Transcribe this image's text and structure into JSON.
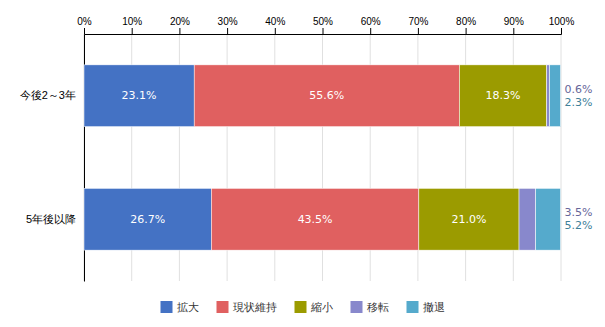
{
  "chart_data": {
    "type": "bar",
    "orientation": "horizontal",
    "stacked": true,
    "data_labels": true,
    "categories": [
      "今後2～3年",
      "5年後以降"
    ],
    "series": [
      {
        "name": "拡大",
        "color": "#4472C4",
        "values": [
          23.1,
          26.7
        ],
        "value_labels": [
          "23.1%",
          "26.7%"
        ]
      },
      {
        "name": "現状維持",
        "color": "#E06060",
        "values": [
          55.6,
          43.5
        ],
        "value_labels": [
          "55.6%",
          "43.5%"
        ]
      },
      {
        "name": "縮小",
        "color": "#9B9B00",
        "values": [
          18.3,
          21.0
        ],
        "value_labels": [
          "18.3%",
          "21.0%"
        ]
      },
      {
        "name": "移転",
        "color": "#8888CC",
        "values": [
          0.6,
          3.5
        ],
        "value_labels": [
          "0.6%",
          "3.5%"
        ]
      },
      {
        "name": "撤退",
        "color": "#55AACC",
        "values": [
          2.3,
          5.2
        ],
        "value_labels": [
          "2.3%",
          "5.2%"
        ]
      }
    ],
    "xlim": [
      0,
      100
    ],
    "xticks": [
      {
        "value": 0,
        "label": "0%"
      },
      {
        "value": 10,
        "label": "10%"
      },
      {
        "value": 20,
        "label": "20%"
      },
      {
        "value": 30,
        "label": "30%"
      },
      {
        "value": 40,
        "label": "40%"
      },
      {
        "value": 50,
        "label": "50%"
      },
      {
        "value": 60,
        "label": "60%"
      },
      {
        "value": 70,
        "label": "70%"
      },
      {
        "value": 80,
        "label": "80%"
      },
      {
        "value": 90,
        "label": "90%"
      },
      {
        "value": 100,
        "label": "100%"
      }
    ],
    "grid": true,
    "legend": "bottom"
  }
}
